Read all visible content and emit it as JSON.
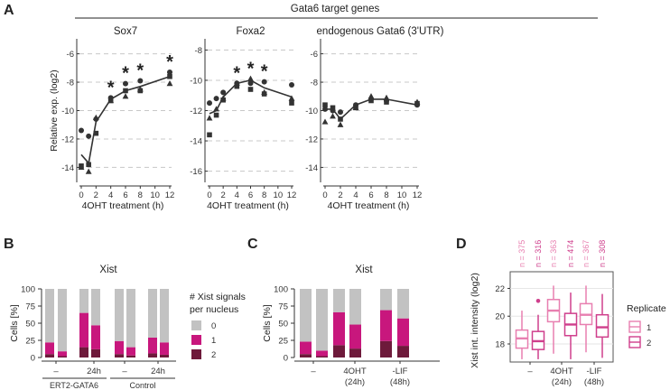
{
  "figure": {
    "A": {
      "letter": "A",
      "header": "Gata6 target genes"
    },
    "B": {
      "letter": "B"
    },
    "C": {
      "letter": "C"
    },
    "D": {
      "letter": "D"
    }
  },
  "chart_data": [
    {
      "id": "A1",
      "type": "line",
      "title": "Sox7",
      "ylabel": "Relative exp. (log2)",
      "xlabel": "4OHT treatment (h)",
      "x_ticks": [
        0,
        2,
        4,
        6,
        8,
        10,
        12
      ],
      "y_ticks": [
        -14,
        -12,
        -10,
        -8,
        -6
      ],
      "ylim": [
        -14.8,
        -5.2
      ],
      "mean": [
        [
          0,
          -13.1
        ],
        [
          1,
          -13.7
        ],
        [
          2,
          -10.8
        ],
        [
          4,
          -9.2
        ],
        [
          6,
          -8.6
        ],
        [
          8,
          -8.3
        ],
        [
          12,
          -7.6
        ]
      ],
      "circles": [
        [
          0,
          -11.4
        ],
        [
          1,
          -11.8
        ],
        [
          2,
          -10.6
        ],
        [
          4,
          -9.1
        ],
        [
          6,
          -8.1
        ],
        [
          8,
          -7.9
        ],
        [
          12,
          -7.3
        ]
      ],
      "squares": [
        [
          0,
          -13.9
        ],
        [
          1,
          -13.8
        ],
        [
          2,
          -11.6
        ],
        [
          4,
          -9.3
        ],
        [
          6,
          -8.6
        ],
        [
          8,
          -8.6
        ],
        [
          12,
          -7.6
        ]
      ],
      "triangles": [
        [
          0,
          -14.0
        ],
        [
          1,
          -14.3
        ],
        [
          2,
          -10.5
        ],
        [
          4,
          -9.3
        ],
        [
          6,
          -9.0
        ],
        [
          8,
          -8.5
        ],
        [
          12,
          -8.1
        ]
      ],
      "stars_at": [
        4,
        6,
        8,
        12
      ],
      "star": "*"
    },
    {
      "id": "A2",
      "type": "line",
      "title": "Foxa2",
      "ylabel": "",
      "xlabel": "4OHT treatment (h)",
      "x_ticks": [
        0,
        2,
        4,
        6,
        8,
        10,
        12
      ],
      "y_ticks": [
        -16,
        -14,
        -12,
        -10,
        -8
      ],
      "ylim": [
        -16.5,
        -7.5
      ],
      "mean": [
        [
          0,
          -12.2
        ],
        [
          1,
          -12.0
        ],
        [
          2,
          -11.1
        ],
        [
          4,
          -10.2
        ],
        [
          6,
          -10.0
        ],
        [
          8,
          -10.5
        ],
        [
          12,
          -11.1
        ]
      ],
      "circles": [
        [
          0,
          -11.5
        ],
        [
          1,
          -11.2
        ],
        [
          2,
          -10.8
        ],
        [
          4,
          -10.2
        ],
        [
          6,
          -10.2
        ],
        [
          8,
          -10.1
        ],
        [
          12,
          -10.3
        ]
      ],
      "squares": [
        [
          0,
          -13.6
        ],
        [
          1,
          -12.3
        ],
        [
          2,
          -11.3
        ],
        [
          4,
          -10.4
        ],
        [
          6,
          -10.6
        ],
        [
          8,
          -10.9
        ],
        [
          12,
          -11.5
        ]
      ],
      "triangles": [
        [
          0,
          -12.5
        ],
        [
          1,
          -11.9
        ],
        [
          2,
          -11.2
        ],
        [
          4,
          -10.2
        ],
        [
          6,
          -9.9
        ],
        [
          8,
          -10.8
        ],
        [
          12,
          -11.2
        ]
      ],
      "stars_at": [
        4,
        6,
        8
      ],
      "star": "*"
    },
    {
      "id": "A3",
      "type": "line",
      "title": "endogenous Gata6 (3'UTR)",
      "ylabel": "",
      "xlabel": "4OHT treatment (h)",
      "x_ticks": [
        0,
        2,
        4,
        6,
        8,
        10,
        12
      ],
      "y_ticks": [
        -14,
        -12,
        -10,
        -8,
        -6
      ],
      "ylim": [
        -14.8,
        -5.2
      ],
      "mean": [
        [
          0,
          -9.9
        ],
        [
          1,
          -9.9
        ],
        [
          2,
          -10.6
        ],
        [
          4,
          -9.6
        ],
        [
          6,
          -9.2
        ],
        [
          8,
          -9.2
        ],
        [
          12,
          -9.6
        ]
      ],
      "circles": [
        [
          0,
          -9.9
        ],
        [
          1,
          -10.0
        ],
        [
          2,
          -10.1
        ],
        [
          4,
          -9.6
        ],
        [
          6,
          -9.2
        ],
        [
          8,
          -9.3
        ],
        [
          12,
          -9.6
        ]
      ],
      "squares": [
        [
          0,
          -9.6
        ],
        [
          1,
          -9.8
        ],
        [
          2,
          -10.6
        ],
        [
          4,
          -9.8
        ],
        [
          6,
          -9.3
        ],
        [
          8,
          -9.4
        ],
        [
          12,
          -9.5
        ]
      ],
      "triangles": [
        [
          0,
          -10.8
        ],
        [
          1,
          -10.4
        ],
        [
          2,
          -11.0
        ],
        [
          4,
          -9.8
        ],
        [
          6,
          -9.0
        ],
        [
          8,
          -9.1
        ],
        [
          12,
          -9.4
        ]
      ],
      "stars_at": [],
      "star": "*"
    },
    {
      "id": "B",
      "type": "bar",
      "stacked": true,
      "title": "Xist",
      "ylabel": "Cells [%]",
      "y_ticks": [
        0,
        25,
        50,
        75,
        100
      ],
      "ylim": [
        0,
        100
      ],
      "bars": [
        {
          "v0": 78,
          "v1": 17,
          "v2": 5
        },
        {
          "v0": 91,
          "v1": 7,
          "v2": 2
        },
        {
          "v0": 35,
          "v1": 50,
          "v2": 15
        },
        {
          "v0": 53,
          "v1": 35,
          "v2": 12
        },
        {
          "v0": 76,
          "v1": 19,
          "v2": 5
        },
        {
          "v0": 85,
          "v1": 12,
          "v2": 3
        },
        {
          "v0": 71,
          "v1": 23,
          "v2": 6
        },
        {
          "v0": 78,
          "v1": 18,
          "v2": 4
        }
      ],
      "tick_labels": [
        "–",
        "24h",
        "–",
        "24h"
      ],
      "group_labels": [
        "ERT2-GATA6",
        "Control"
      ],
      "legend_title": [
        "# Xist signals",
        "per nucleus"
      ],
      "legend": [
        {
          "label": "0",
          "color": "#c2c2c2"
        },
        {
          "label": "1",
          "color": "#c8177d"
        },
        {
          "label": "2",
          "color": "#6e1a3b"
        }
      ]
    },
    {
      "id": "C",
      "type": "bar",
      "stacked": true,
      "title": "Xist",
      "ylabel": "Cells [%]",
      "y_ticks": [
        0,
        25,
        50,
        75,
        100
      ],
      "ylim": [
        0,
        100
      ],
      "bars": [
        {
          "v0": 77,
          "v1": 18,
          "v2": 5
        },
        {
          "v0": 90,
          "v1": 8,
          "v2": 2
        },
        {
          "v0": 34,
          "v1": 48,
          "v2": 18
        },
        {
          "v0": 52,
          "v1": 35,
          "v2": 13
        },
        {
          "v0": 31,
          "v1": 45,
          "v2": 24
        },
        {
          "v0": 43,
          "v1": 40,
          "v2": 17
        }
      ],
      "tick_labels": [
        "–",
        "4OHT\n(24h)",
        "-LIF\n(48h)"
      ],
      "colors": [
        "#c2c2c2",
        "#c8177d",
        "#6e1a3b"
      ]
    },
    {
      "id": "D",
      "type": "box",
      "ylabel": "Xist int. intensity (log2)",
      "y_ticks": [
        18,
        20,
        22
      ],
      "ylim": [
        16.7,
        23.2
      ],
      "groups": [
        "–",
        "4OHT\n(24h)",
        "-LIF\n(48h)"
      ],
      "boxes": [
        {
          "rep": "1",
          "n": "n = 375",
          "min": 16.9,
          "q1": 17.7,
          "med": 18.4,
          "q3": 19.0,
          "max": 20.4,
          "outliers": []
        },
        {
          "rep": "2",
          "n": "n = 316",
          "min": 16.9,
          "q1": 17.6,
          "med": 18.2,
          "q3": 18.9,
          "max": 20.1,
          "outliers": [
            21.1
          ]
        },
        {
          "rep": "1",
          "n": "n = 363",
          "min": 17.3,
          "q1": 19.6,
          "med": 20.4,
          "q3": 21.2,
          "max": 22.2,
          "outliers": []
        },
        {
          "rep": "2",
          "n": "n = 474",
          "min": 16.9,
          "q1": 18.6,
          "med": 19.4,
          "q3": 20.2,
          "max": 21.7,
          "outliers": []
        },
        {
          "rep": "1",
          "n": "n = 367",
          "min": 17.4,
          "q1": 19.4,
          "med": 20.1,
          "q3": 20.9,
          "max": 22.2,
          "outliers": []
        },
        {
          "rep": "2",
          "n": "n = 308",
          "min": 17.0,
          "q1": 18.5,
          "med": 19.2,
          "q3": 20.1,
          "max": 21.6,
          "outliers": []
        }
      ],
      "legend_title": "Replicate",
      "legend": [
        {
          "label": "1",
          "color": "#e87fb0"
        },
        {
          "label": "2",
          "color": "#cf3f8c"
        }
      ]
    }
  ]
}
